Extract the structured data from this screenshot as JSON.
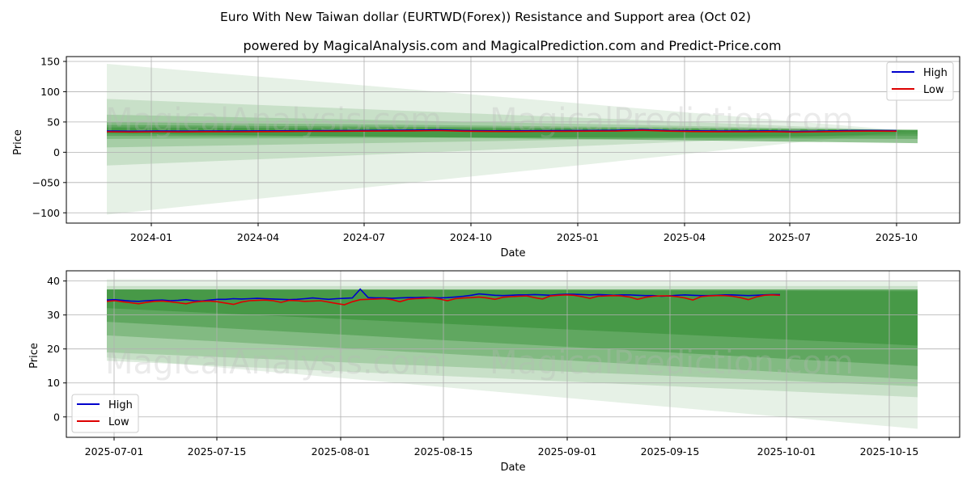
{
  "title": "Euro With New Taiwan dollar (EURTWD(Forex)) Resistance and Support area (Oct 02)",
  "subtitle": "powered by MagicalAnalysis.com and MagicalPrediction.com and Predict-Price.com",
  "watermarks": [
    "MagicalAnalysis.com",
    "MagicalPrediction.com"
  ],
  "colors": {
    "high": "#0000cc",
    "low": "#dd0000",
    "band": "#2e8b2e",
    "grid": "#b0b0b0"
  },
  "chart_data": [
    {
      "type": "line",
      "xlabel": "Date",
      "ylabel": "Price",
      "x_ticks": [
        "2024-01",
        "2024-04",
        "2024-07",
        "2024-10",
        "2025-01",
        "2025-04",
        "2025-07",
        "2025-10"
      ],
      "y_ticks": [
        "150",
        "100",
        "50",
        "0",
        "−050",
        "−100"
      ],
      "ylim": [
        -117,
        158
      ],
      "legend": {
        "position": "top-right",
        "entries": [
          "High",
          "Low"
        ]
      },
      "series": [
        {
          "name": "High",
          "values": [
            35.0,
            34.8,
            35.1,
            34.9,
            35.2,
            35.0,
            35.3,
            35.5,
            35.6,
            35.8,
            36.0,
            36.3,
            36.5,
            37.0,
            35.9,
            35.5,
            35.4,
            35.6,
            35.8,
            36.0,
            36.2,
            37.5,
            36.0,
            35.4,
            35.2,
            35.0,
            35.3,
            34.5,
            34.9,
            35.8,
            36.0,
            35.9
          ]
        },
        {
          "name": "Low",
          "values": [
            33.8,
            33.5,
            33.9,
            33.6,
            34.0,
            33.8,
            34.1,
            34.3,
            34.5,
            34.7,
            34.9,
            35.1,
            35.3,
            35.8,
            34.8,
            34.4,
            34.2,
            34.5,
            34.6,
            34.9,
            35.0,
            36.2,
            34.9,
            34.2,
            34.0,
            33.8,
            34.1,
            33.3,
            33.8,
            34.6,
            34.9,
            34.8
          ]
        }
      ]
    },
    {
      "type": "line",
      "xlabel": "Date",
      "ylabel": "Price",
      "x_ticks": [
        "2025-07-01",
        "2025-07-15",
        "2025-08-01",
        "2025-08-15",
        "2025-09-01",
        "2025-09-15",
        "2025-10-01",
        "2025-10-15"
      ],
      "y_ticks": [
        "40",
        "30",
        "20",
        "10",
        "0"
      ],
      "ylim": [
        -6,
        43
      ],
      "legend": {
        "position": "bottom-left",
        "entries": [
          "High",
          "Low"
        ]
      },
      "series": [
        {
          "name": "High",
          "values": [
            34.4,
            34.5,
            34.3,
            34.1,
            34.0,
            34.2,
            34.3,
            34.4,
            34.2,
            34.3,
            34.5,
            34.2,
            34.1,
            34.4,
            34.6,
            34.6,
            34.8,
            34.7,
            34.8,
            34.9,
            34.8,
            34.7,
            34.6,
            34.5,
            34.6,
            34.8,
            35.0,
            34.8,
            34.6,
            34.8,
            34.9,
            35.0,
            37.6,
            35.1,
            35.0,
            35.0,
            34.9,
            35.0,
            35.1,
            35.1,
            35.2,
            35.1,
            35.0,
            35.1,
            35.3,
            35.5,
            35.8,
            36.2,
            36.0,
            35.8,
            35.7,
            35.8,
            35.9,
            35.9,
            36.0,
            35.9,
            35.8,
            36.0,
            36.1,
            36.1,
            36.0,
            35.9,
            36.0,
            35.9,
            35.8,
            35.9,
            35.9,
            35.8,
            35.7,
            35.7,
            35.5,
            35.6,
            35.8,
            35.9,
            35.8,
            35.7,
            35.7,
            35.8,
            35.9,
            35.9,
            35.8,
            35.7,
            35.8,
            35.9,
            36.0,
            36.0
          ]
        },
        {
          "name": "Low",
          "values": [
            34.0,
            34.2,
            33.9,
            33.6,
            33.3,
            33.7,
            34.0,
            34.1,
            33.9,
            33.6,
            33.3,
            33.8,
            34.0,
            34.1,
            33.9,
            33.5,
            33.1,
            33.8,
            34.2,
            34.3,
            34.4,
            34.2,
            33.7,
            34.3,
            34.2,
            34.0,
            34.1,
            34.2,
            33.8,
            33.4,
            33.0,
            33.9,
            34.5,
            34.6,
            34.7,
            34.8,
            34.5,
            33.9,
            34.6,
            34.8,
            34.9,
            35.0,
            34.7,
            34.2,
            34.8,
            35.0,
            35.1,
            35.3,
            35.0,
            34.6,
            35.2,
            35.4,
            35.5,
            35.6,
            35.1,
            34.7,
            35.6,
            35.8,
            35.9,
            35.8,
            35.4,
            34.9,
            35.5,
            35.6,
            35.7,
            35.6,
            35.3,
            34.6,
            35.2,
            35.5,
            35.6,
            35.6,
            35.4,
            35.0,
            34.4,
            35.4,
            35.6,
            35.7,
            35.7,
            35.5,
            35.1,
            34.5,
            35.3,
            35.8,
            35.9,
            35.8
          ]
        }
      ]
    }
  ]
}
